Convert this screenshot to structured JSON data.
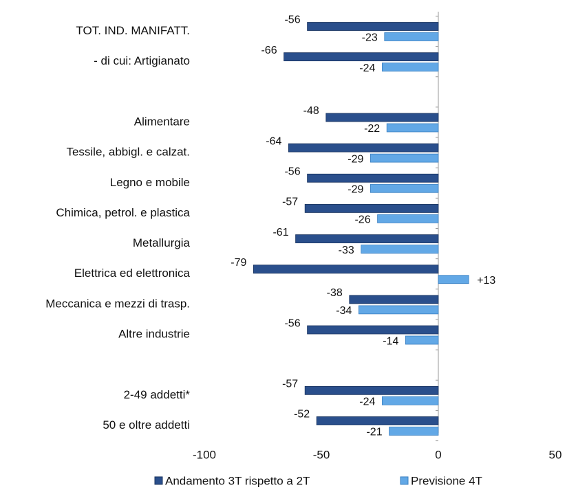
{
  "chart_data": {
    "type": "hbar",
    "categories": [
      "TOT. IND. MANIFATT.",
      "- di cui: Artigianato",
      null,
      "Alimentare",
      "Tessile, abbigl. e calzat.",
      "Legno e mobile",
      "Chimica, petrol. e plastica",
      "Metallurgia",
      "Elettrica ed elettronica",
      "Meccanica e mezzi di trasp.",
      "Altre industrie",
      null,
      "2-49 addetti*",
      "50 e oltre addetti"
    ],
    "series": [
      {
        "name": "Andamento 3T rispetto a 2T",
        "color": "#2a4f8c",
        "values": [
          -56,
          -66,
          null,
          -48,
          -64,
          -56,
          -57,
          -61,
          -79,
          -38,
          -56,
          null,
          -57,
          -52
        ]
      },
      {
        "name": "Previsione 4T",
        "color": "#62a8e6",
        "values": [
          -23,
          -24,
          null,
          -22,
          -29,
          -29,
          -26,
          -33,
          13,
          -34,
          -14,
          null,
          -24,
          -21
        ],
        "value_labels": [
          "-23",
          "-24",
          null,
          "-22",
          "-29",
          "-29",
          "-26",
          "-33",
          "+13",
          "-34",
          "-14",
          null,
          "-24",
          "-21"
        ]
      }
    ],
    "xlim": [
      -100,
      50
    ],
    "xticks": [
      -100,
      -50,
      0,
      50
    ],
    "legend": "bottom"
  }
}
